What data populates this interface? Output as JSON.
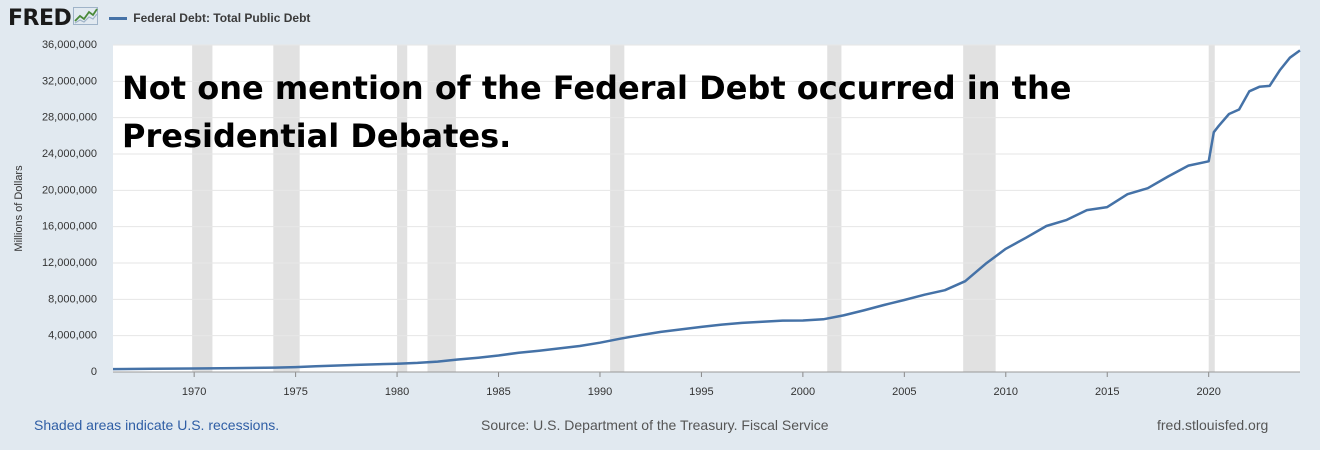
{
  "header": {
    "logo": "FRED",
    "logo_icon": "fred-chart-icon",
    "legend_label": "Federal Debt: Total Public Debt"
  },
  "colors": {
    "line": "#4572a7",
    "recession": "#e1e1e1",
    "plot_bg": "#ffffff",
    "page_bg": "#e1e9f0"
  },
  "annotation": "Not one mention of the Federal Debt occurred in the Presidential Debates.",
  "footer": {
    "left": "Shaded areas indicate U.S. recessions.",
    "center": "Source: U.S. Department of the Treasury. Fiscal Service",
    "right": "fred.stlouisfed.org"
  },
  "chart_data": {
    "type": "line",
    "title": "",
    "xlabel": "",
    "ylabel": "Millions of Dollars",
    "xlim": [
      1966.0,
      2024.5
    ],
    "ylim": [
      0,
      36000000
    ],
    "yticks": [
      0,
      4000000,
      8000000,
      12000000,
      16000000,
      20000000,
      24000000,
      28000000,
      32000000,
      36000000
    ],
    "ytick_labels": [
      "0",
      "4,000,000",
      "8,000,000",
      "12,000,000",
      "16,000,000",
      "20,000,000",
      "24,000,000",
      "28,000,000",
      "32,000,000",
      "36,000,000"
    ],
    "xticks": [
      1970,
      1975,
      1980,
      1985,
      1990,
      1995,
      2000,
      2005,
      2010,
      2015,
      2020
    ],
    "xtick_labels": [
      "1970",
      "1975",
      "1980",
      "1985",
      "1990",
      "1995",
      "2000",
      "2005",
      "2010",
      "2015",
      "2020"
    ],
    "grid": true,
    "recessions": [
      [
        1969.9,
        1970.9
      ],
      [
        1973.9,
        1975.2
      ],
      [
        1980.0,
        1980.5
      ],
      [
        1981.5,
        1982.9
      ],
      [
        1990.5,
        1991.2
      ],
      [
        2001.2,
        2001.9
      ],
      [
        2007.9,
        2009.5
      ],
      [
        2020.0,
        2020.3
      ]
    ],
    "series": [
      {
        "name": "Federal Debt: Total Public Debt",
        "x": [
          1966,
          1968,
          1970,
          1972,
          1974,
          1975,
          1976,
          1978,
          1980,
          1981,
          1982,
          1983,
          1984,
          1985,
          1986,
          1987,
          1988,
          1989,
          1990,
          1991,
          1992,
          1993,
          1994,
          1995,
          1996,
          1997,
          1998,
          1999,
          2000,
          2001,
          2002,
          2003,
          2004,
          2005,
          2006,
          2007,
          2008,
          2009,
          2010,
          2011,
          2012,
          2013,
          2014,
          2015,
          2016,
          2017,
          2018,
          2019,
          2020.0,
          2020.25,
          2020.5,
          2021,
          2021.5,
          2022,
          2022.5,
          2023,
          2023.5,
          2024,
          2024.5
        ],
        "y": [
          320000,
          350000,
          380000,
          430000,
          480000,
          540000,
          630000,
          780000,
          910000,
          1000000,
          1140000,
          1380000,
          1570000,
          1820000,
          2120000,
          2350000,
          2600000,
          2860000,
          3230000,
          3670000,
          4060000,
          4410000,
          4690000,
          4970000,
          5220000,
          5410000,
          5530000,
          5660000,
          5670000,
          5800000,
          6230000,
          6780000,
          7380000,
          7930000,
          8510000,
          9010000,
          10000000,
          11900000,
          13560000,
          14790000,
          16070000,
          16740000,
          17820000,
          18150000,
          19570000,
          20240000,
          21520000,
          22720000,
          23200000,
          26400000,
          27100000,
          28400000,
          28900000,
          30900000,
          31400000,
          31500000,
          33200000,
          34600000,
          35400000
        ]
      }
    ]
  }
}
